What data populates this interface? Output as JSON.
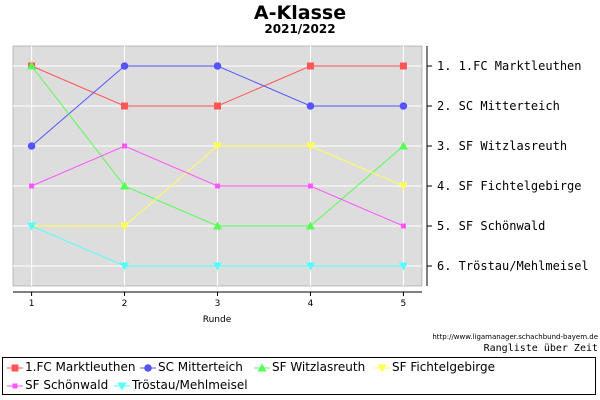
{
  "chart_data": {
    "type": "line",
    "title": "A-Klasse",
    "subtitle": "2021/2022",
    "xlabel": "Runde",
    "ylabel": "",
    "x": [
      1,
      2,
      3,
      4,
      5
    ],
    "ylim": [
      6.5,
      0.5
    ],
    "y_inverted": true,
    "grid": true,
    "legend_position": "bottom",
    "right_axis_labels": [
      "1. 1.FC Marktleuthen",
      "2. SC Mitterteich",
      "3. SF Witzlasreuth",
      "4. SF Fichtelgebirge",
      "5. SF Schönwald",
      "6. Tröstau/Mehlmeisel"
    ],
    "series": [
      {
        "name": "1.FC Marktleuthen",
        "values": [
          1,
          2,
          2,
          1,
          1
        ],
        "color": "#ff5555",
        "marker": "square"
      },
      {
        "name": "SC Mitterteich",
        "values": [
          3,
          1,
          1,
          2,
          2
        ],
        "color": "#5555ff",
        "marker": "circle"
      },
      {
        "name": "SF Witzlasreuth",
        "values": [
          1,
          4,
          5,
          5,
          3
        ],
        "color": "#55ff55",
        "marker": "triangle-up"
      },
      {
        "name": "SF Fichtelgebirge",
        "values": [
          5,
          5,
          3,
          3,
          4
        ],
        "color": "#ffff55",
        "marker": "triangle-down"
      },
      {
        "name": "SF Schönwald",
        "values": [
          4,
          3,
          4,
          4,
          5
        ],
        "color": "#ff55ff",
        "marker": "square-small"
      },
      {
        "name": "Tröstau/Mehlmeisel",
        "values": [
          5,
          6,
          6,
          6,
          6
        ],
        "color": "#55ffff",
        "marker": "triangle-down"
      }
    ]
  },
  "footer": {
    "source": "http://www.ligamanager.schachbund-bayem.de",
    "caption": "Rangliste über Zeit"
  }
}
